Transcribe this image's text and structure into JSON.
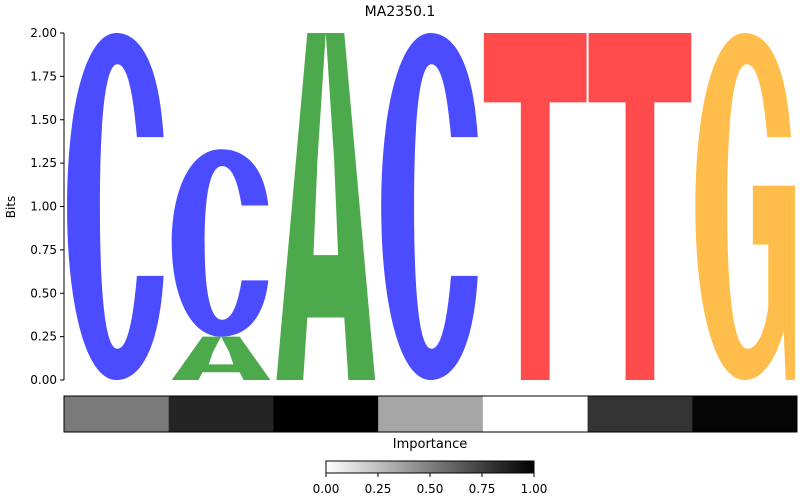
{
  "chart_data": {
    "type": "sequence-logo",
    "title": "MA2350.1",
    "ylabel": "Bits",
    "ylim": [
      0,
      2
    ],
    "yticks": [
      "0.00",
      "0.25",
      "0.50",
      "0.75",
      "1.00",
      "1.25",
      "1.50",
      "1.75",
      "2.00"
    ],
    "colors": {
      "A": "#4CAA4C",
      "C": "#4B4BFF",
      "G": "#FFBE4B",
      "T": "#FF4B4B"
    },
    "positions": [
      {
        "letters": [
          {
            "base": "C",
            "bits": 2.0
          }
        ]
      },
      {
        "letters": [
          {
            "base": "A",
            "bits": 0.25
          },
          {
            "base": "C",
            "bits": 1.08
          }
        ]
      },
      {
        "letters": [
          {
            "base": "A",
            "bits": 2.0
          }
        ]
      },
      {
        "letters": [
          {
            "base": "C",
            "bits": 2.0
          }
        ]
      },
      {
        "letters": [
          {
            "base": "T",
            "bits": 2.0
          }
        ]
      },
      {
        "letters": [
          {
            "base": "T",
            "bits": 2.0
          }
        ]
      },
      {
        "letters": [
          {
            "base": "G",
            "bits": 2.0
          }
        ]
      }
    ],
    "importance": {
      "label": "Importance",
      "values": [
        0.52,
        0.86,
        1.0,
        0.35,
        0.0,
        0.8,
        0.98
      ],
      "colorbar_ticks": [
        "0.00",
        "0.25",
        "0.50",
        "0.75",
        "1.00"
      ],
      "colormap": "white-to-black"
    }
  }
}
